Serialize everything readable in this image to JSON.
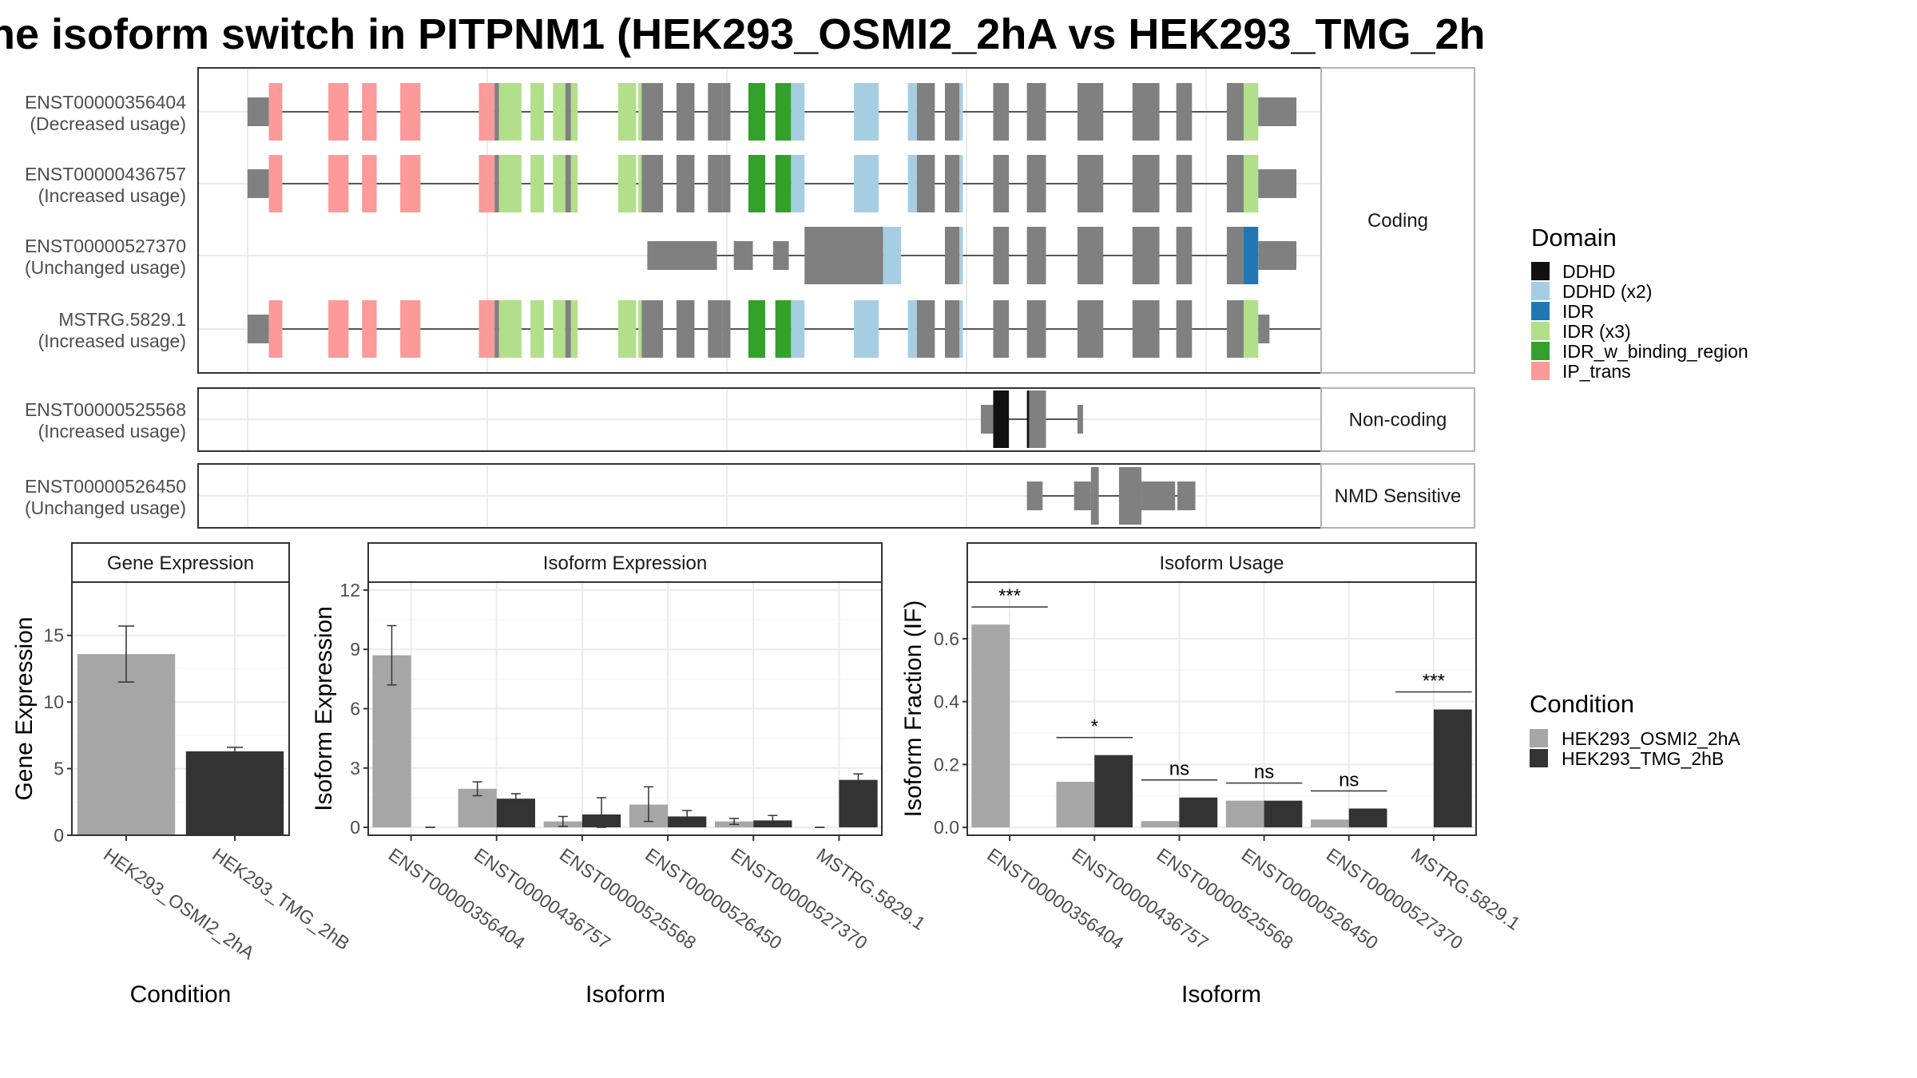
{
  "title": "he isoform switch in PITPNM1 (HEK293_OSMI2_2hA vs HEK293_TMG_2h",
  "colors": {
    "cond_a": "#a6a6a6",
    "cond_b": "#333333",
    "exon": "#808080",
    "DDHD": "#111111",
    "DDHD (x2)": "#a6cee3",
    "IDR": "#1f78b4",
    "IDR (x3)": "#b2df8a",
    "IDR_w_binding_region": "#33a02c",
    "IP_trans": "#fb9a99"
  },
  "domain_legend": {
    "title": "Domain",
    "items": [
      "DDHD",
      "DDHD (x2)",
      "IDR",
      "IDR (x3)",
      "IDR_w_binding_region",
      "IP_trans"
    ]
  },
  "condition_legend": {
    "title": "Condition",
    "items": [
      "HEK293_OSMI2_2hA",
      "HEK293_TMG_2hB"
    ]
  },
  "structure": {
    "facets": [
      {
        "label": "Coding",
        "isoforms": [
          {
            "id": "ENST00000356404",
            "usage": "(Decreased usage)",
            "variant": "full_a"
          },
          {
            "id": "ENST00000436757",
            "usage": "(Increased usage)",
            "variant": "full_a"
          },
          {
            "id": "ENST00000527370",
            "usage": "(Unchanged usage)",
            "variant": "short"
          },
          {
            "id": "MSTRG.5829.1",
            "usage": "(Increased usage)",
            "variant": "full_b"
          }
        ]
      },
      {
        "label": "Non-coding",
        "isoforms": [
          {
            "id": "ENST00000525568",
            "usage": "(Increased usage)",
            "variant": "noncoding"
          }
        ]
      },
      {
        "label": "NMD Sensitive",
        "isoforms": [
          {
            "id": "ENST00000526450",
            "usage": "(Unchanged usage)",
            "variant": "nmd"
          }
        ]
      }
    ]
  },
  "chart_data": [
    {
      "type": "bar",
      "title": "Gene Expression",
      "xlabel": "Condition",
      "ylabel": "Gene Expression",
      "categories": [
        "HEK293_OSMI2_2hA",
        "HEK293_TMG_2hB"
      ],
      "values": [
        13.6,
        6.3
      ],
      "error": [
        [
          11.5,
          15.7
        ],
        [
          6.1,
          6.6
        ]
      ],
      "ylim": [
        0,
        19
      ],
      "yticks": [
        0,
        5,
        10,
        15
      ],
      "grid": true
    },
    {
      "type": "bar",
      "title": "Isoform Expression",
      "xlabel": "Isoform",
      "ylabel": "Isoform Expression",
      "categories": [
        "ENST00000356404",
        "ENST00000436757",
        "ENST00000525568",
        "ENST00000526450",
        "ENST00000527370",
        "MSTRG.5829.1"
      ],
      "series": [
        {
          "name": "HEK293_OSMI2_2hA",
          "values": [
            8.7,
            1.95,
            0.3,
            1.15,
            0.3,
            0.0
          ],
          "error": [
            [
              7.2,
              10.2
            ],
            [
              1.6,
              2.3
            ],
            [
              0.05,
              0.55
            ],
            [
              0.3,
              2.05
            ],
            [
              0.15,
              0.45
            ],
            [
              0.0,
              0.0
            ]
          ]
        },
        {
          "name": "HEK293_TMG_2hB",
          "values": [
            0.0,
            1.45,
            0.65,
            0.55,
            0.35,
            2.4
          ],
          "error": [
            [
              0.0,
              0.0
            ],
            [
              1.2,
              1.7
            ],
            [
              0.0,
              1.5
            ],
            [
              0.25,
              0.85
            ],
            [
              0.15,
              0.6
            ],
            [
              2.1,
              2.7
            ]
          ]
        }
      ],
      "ylim": [
        -0.4,
        12.4
      ],
      "yticks": [
        0,
        3,
        6,
        9,
        12
      ],
      "grid": true
    },
    {
      "type": "bar",
      "title": "Isoform Usage",
      "xlabel": "Isoform",
      "ylabel": "Isoform Fraction (IF)",
      "categories": [
        "ENST00000356404",
        "ENST00000436757",
        "ENST00000525568",
        "ENST00000526450",
        "ENST00000527370",
        "MSTRG.5829.1"
      ],
      "series": [
        {
          "name": "HEK293_OSMI2_2hA",
          "values": [
            0.645,
            0.145,
            0.02,
            0.085,
            0.025,
            0.0
          ]
        },
        {
          "name": "HEK293_TMG_2hB",
          "values": [
            0.0,
            0.23,
            0.095,
            0.085,
            0.06,
            0.375
          ]
        }
      ],
      "significance": [
        "***",
        "*",
        "ns",
        "ns",
        "ns",
        "***"
      ],
      "ylim": [
        -0.025,
        0.78
      ],
      "yticks": [
        0.0,
        0.2,
        0.4,
        0.6
      ],
      "grid": true
    }
  ]
}
